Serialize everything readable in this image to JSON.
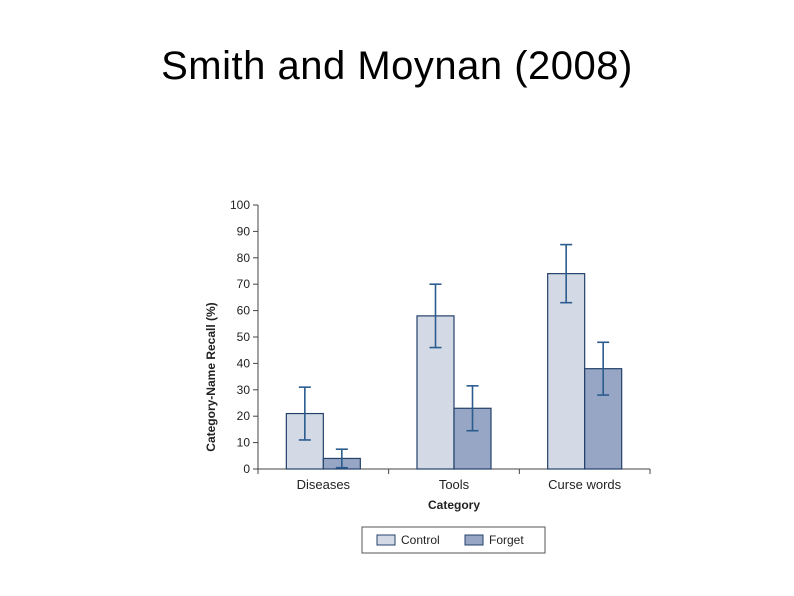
{
  "slide": {
    "title": "Smith and Moynan (2008)"
  },
  "colors": {
    "control": "#d3dae6",
    "forget": "#97a6c4",
    "bar_edge": "#23416b",
    "error_bar": "#2b5c8f",
    "axis": "#444444"
  },
  "chart_data": {
    "type": "bar",
    "title": "",
    "xlabel": "Category",
    "ylabel": "Category-Name Recall (%)",
    "ylim": [
      0,
      100
    ],
    "yticks": [
      0,
      10,
      20,
      30,
      40,
      50,
      60,
      70,
      80,
      90,
      100
    ],
    "categories": [
      "Diseases",
      "Tools",
      "Curse words"
    ],
    "series": [
      {
        "name": "Control",
        "values": [
          21,
          58,
          74
        ],
        "errors": [
          10,
          12,
          11
        ]
      },
      {
        "name": "Forget",
        "values": [
          4,
          23,
          38
        ],
        "errors": [
          3.5,
          8.5,
          10
        ]
      }
    ],
    "legend": {
      "position": "bottom"
    },
    "grid": false
  }
}
